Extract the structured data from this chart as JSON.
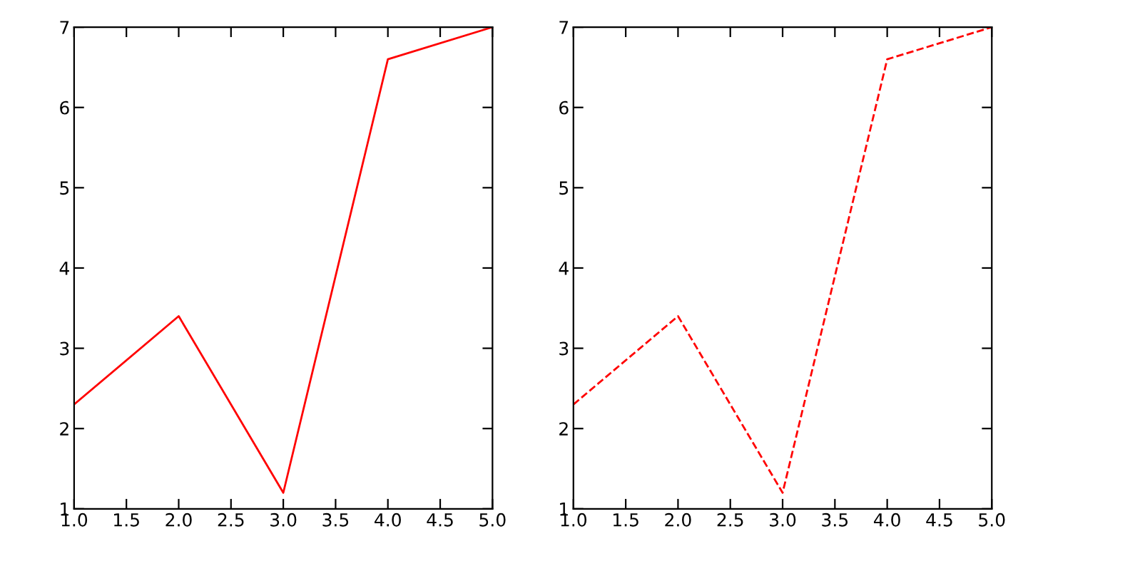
{
  "chart_data": [
    {
      "type": "line",
      "x": [
        1,
        2,
        3,
        4,
        5
      ],
      "series": [
        {
          "color": "#ff0000",
          "values": [
            2.3,
            3.4,
            1.2,
            6.6,
            7.0
          ]
        }
      ],
      "line_style": "solid",
      "xlim": [
        1,
        5
      ],
      "ylim": [
        1,
        7
      ],
      "xticks": [
        {
          "value": 1,
          "label": "1.0"
        },
        {
          "value": 1.5,
          "label": "1.5"
        },
        {
          "value": 2,
          "label": "2.0"
        },
        {
          "value": 2.5,
          "label": "2.5"
        },
        {
          "value": 3,
          "label": "3.0"
        },
        {
          "value": 3.5,
          "label": "3.5"
        },
        {
          "value": 4,
          "label": "4.0"
        },
        {
          "value": 4.5,
          "label": "4.5"
        },
        {
          "value": 5,
          "label": "5.0"
        }
      ],
      "yticks": [
        1,
        2,
        3,
        4,
        5,
        6,
        7
      ],
      "grid": false
    },
    {
      "type": "line",
      "x": [
        1,
        2,
        3,
        4,
        5
      ],
      "series": [
        {
          "color": "#ff0000",
          "values": [
            2.3,
            3.4,
            1.2,
            6.6,
            7.0
          ]
        }
      ],
      "line_style": "dashed",
      "xlim": [
        1,
        5
      ],
      "ylim": [
        1,
        7
      ],
      "xticks": [
        {
          "value": 1,
          "label": "1.0"
        },
        {
          "value": 1.5,
          "label": "1.5"
        },
        {
          "value": 2,
          "label": "2.0"
        },
        {
          "value": 2.5,
          "label": "2.5"
        },
        {
          "value": 3,
          "label": "3.0"
        },
        {
          "value": 3.5,
          "label": "3.5"
        },
        {
          "value": 4,
          "label": "4.0"
        },
        {
          "value": 4.5,
          "label": "4.5"
        },
        {
          "value": 5,
          "label": "5.0"
        }
      ],
      "yticks": [
        1,
        2,
        3,
        4,
        5,
        6,
        7
      ],
      "grid": false
    }
  ]
}
